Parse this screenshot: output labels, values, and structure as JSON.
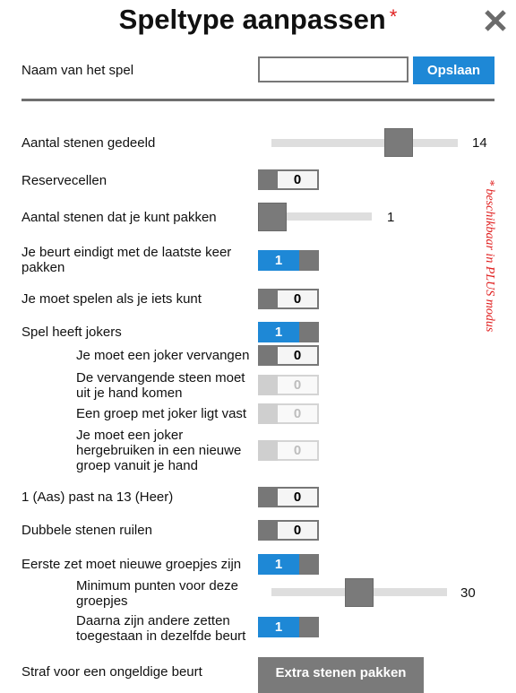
{
  "header": {
    "title": "Speltype aanpassen",
    "asterisk": "*"
  },
  "name_row": {
    "label": "Naam van het spel",
    "input_value": "",
    "save_label": "Opslaan"
  },
  "settings": {
    "tiles_dealt": {
      "label": "Aantal stenen gedeeld",
      "value": "14"
    },
    "spare_cells": {
      "label": "Reservecellen",
      "value": "0"
    },
    "tiles_pick": {
      "label": "Aantal stenen dat je kunt pakken",
      "value": "1"
    },
    "turn_ends": {
      "label": "Je beurt eindigt met de laatste keer pakken",
      "value": "1"
    },
    "must_play": {
      "label": "Je moet spelen als je iets kunt",
      "value": "0"
    },
    "jokers": {
      "label": "Spel heeft jokers",
      "value": "1"
    },
    "replace_joker": {
      "label": "Je moet een joker vervangen",
      "value": "0"
    },
    "from_hand": {
      "label": "De vervangende steen moet uit je hand komen",
      "value": "0"
    },
    "group_fixed": {
      "label": "Een groep met joker ligt vast",
      "value": "0"
    },
    "reuse_joker": {
      "label": "Je moet een joker hergebruiken in een nieuwe groep vanuit je hand",
      "value": "0"
    },
    "ace_after_king": {
      "label": "1 (Aas) past na 13 (Heer)",
      "value": "0"
    },
    "swap_doubles": {
      "label": "Dubbele stenen ruilen",
      "value": "0"
    },
    "first_move": {
      "label": "Eerste zet moet nieuwe groepjes zijn",
      "value": "1"
    },
    "min_points": {
      "label": "Minimum punten voor deze groepjes",
      "value": "30"
    },
    "other_moves": {
      "label": "Daarna zijn andere zetten toegestaan in dezelfde beurt",
      "value": "1"
    },
    "penalty": {
      "label": "Straf voor een ongeldige beurt",
      "button_label": "Extra stenen pakken"
    }
  },
  "side_note": "* beschikbaar in PLUS modus",
  "sliders": {
    "tiles_dealt_level": 0.55,
    "tiles_pick_level": 0.0,
    "min_points_level": 0.45
  },
  "colors": {
    "accent": "#1e88d6",
    "toggle_grey": "#777777",
    "asterisk": "#e02020"
  }
}
